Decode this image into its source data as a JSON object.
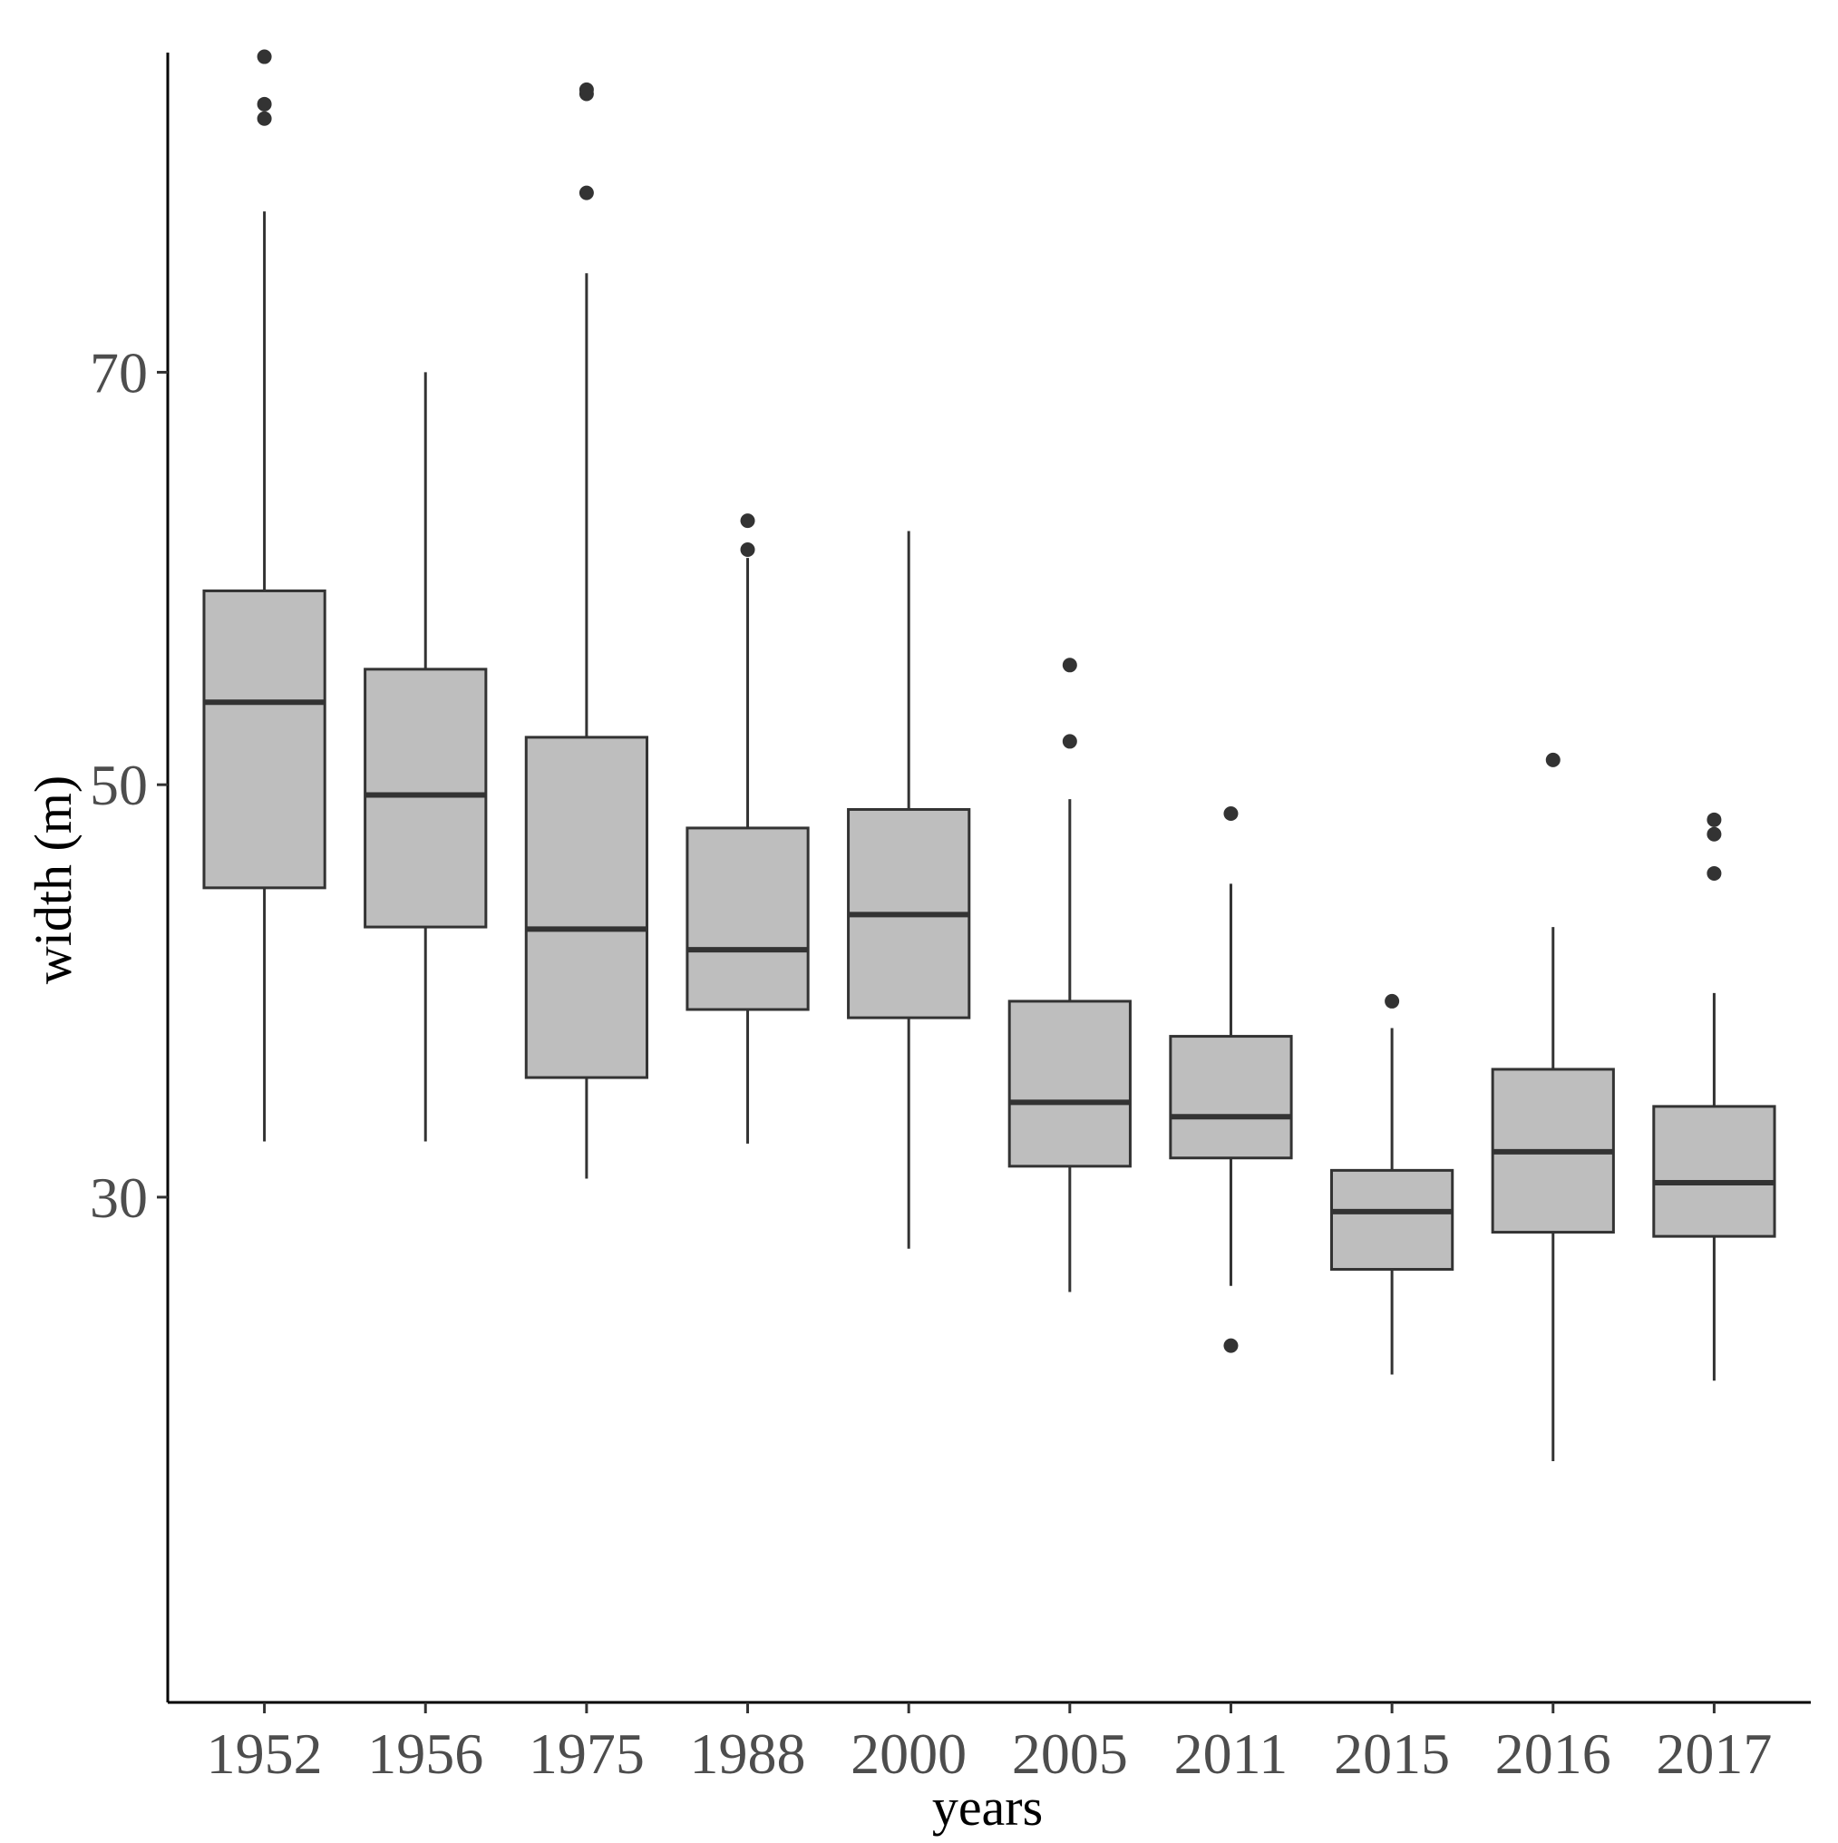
{
  "chart_data": {
    "type": "boxplot",
    "title": "",
    "xlabel": "years",
    "ylabel": "width (m)",
    "ylim": [
      5.5,
      85.5
    ],
    "yticks": [
      30,
      50,
      70
    ],
    "grid": false,
    "legend": "none",
    "colors": {
      "box_fill": "#bebebe",
      "line": "#333333",
      "axis": "#000000",
      "tick_text": "#4d4d4d"
    },
    "categories": [
      "1952",
      "1956",
      "1975",
      "1988",
      "2000",
      "2005",
      "2011",
      "2015",
      "2016",
      "2017"
    ],
    "boxes": [
      {
        "category": "1952",
        "whisker_low": 32.7,
        "q1": 45.0,
        "median": 54.0,
        "q3": 59.4,
        "whisker_high": 77.8,
        "outliers": [
          85.3,
          83.0,
          82.3
        ]
      },
      {
        "category": "1956",
        "whisker_low": 32.7,
        "q1": 43.1,
        "median": 49.5,
        "q3": 55.6,
        "whisker_high": 70.0,
        "outliers": []
      },
      {
        "category": "1975",
        "whisker_low": 30.9,
        "q1": 35.8,
        "median": 43.0,
        "q3": 52.3,
        "whisker_high": 74.8,
        "outliers": [
          83.7,
          83.5,
          78.7
        ]
      },
      {
        "category": "1988",
        "whisker_low": 32.6,
        "q1": 39.1,
        "median": 42.0,
        "q3": 47.9,
        "whisker_high": 61.0,
        "outliers": [
          62.8,
          61.4
        ]
      },
      {
        "category": "2000",
        "whisker_low": 27.5,
        "q1": 38.7,
        "median": 43.7,
        "q3": 48.8,
        "whisker_high": 62.3,
        "outliers": []
      },
      {
        "category": "2005",
        "whisker_low": 25.4,
        "q1": 31.5,
        "median": 34.6,
        "q3": 39.5,
        "whisker_high": 49.3,
        "outliers": [
          55.8,
          52.1
        ]
      },
      {
        "category": "2011",
        "whisker_low": 25.7,
        "q1": 31.9,
        "median": 33.9,
        "q3": 37.8,
        "whisker_high": 45.2,
        "outliers": [
          48.6,
          22.8
        ]
      },
      {
        "category": "2015",
        "whisker_low": 21.4,
        "q1": 26.5,
        "median": 29.3,
        "q3": 31.3,
        "whisker_high": 38.2,
        "outliers": [
          39.5
        ]
      },
      {
        "category": "2016",
        "whisker_low": 17.2,
        "q1": 28.3,
        "median": 32.2,
        "q3": 36.2,
        "whisker_high": 43.1,
        "outliers": [
          51.2
        ]
      },
      {
        "category": "2017",
        "whisker_low": 21.1,
        "q1": 28.1,
        "median": 30.7,
        "q3": 34.4,
        "whisker_high": 39.9,
        "outliers": [
          48.3,
          47.6,
          45.7
        ]
      }
    ]
  }
}
